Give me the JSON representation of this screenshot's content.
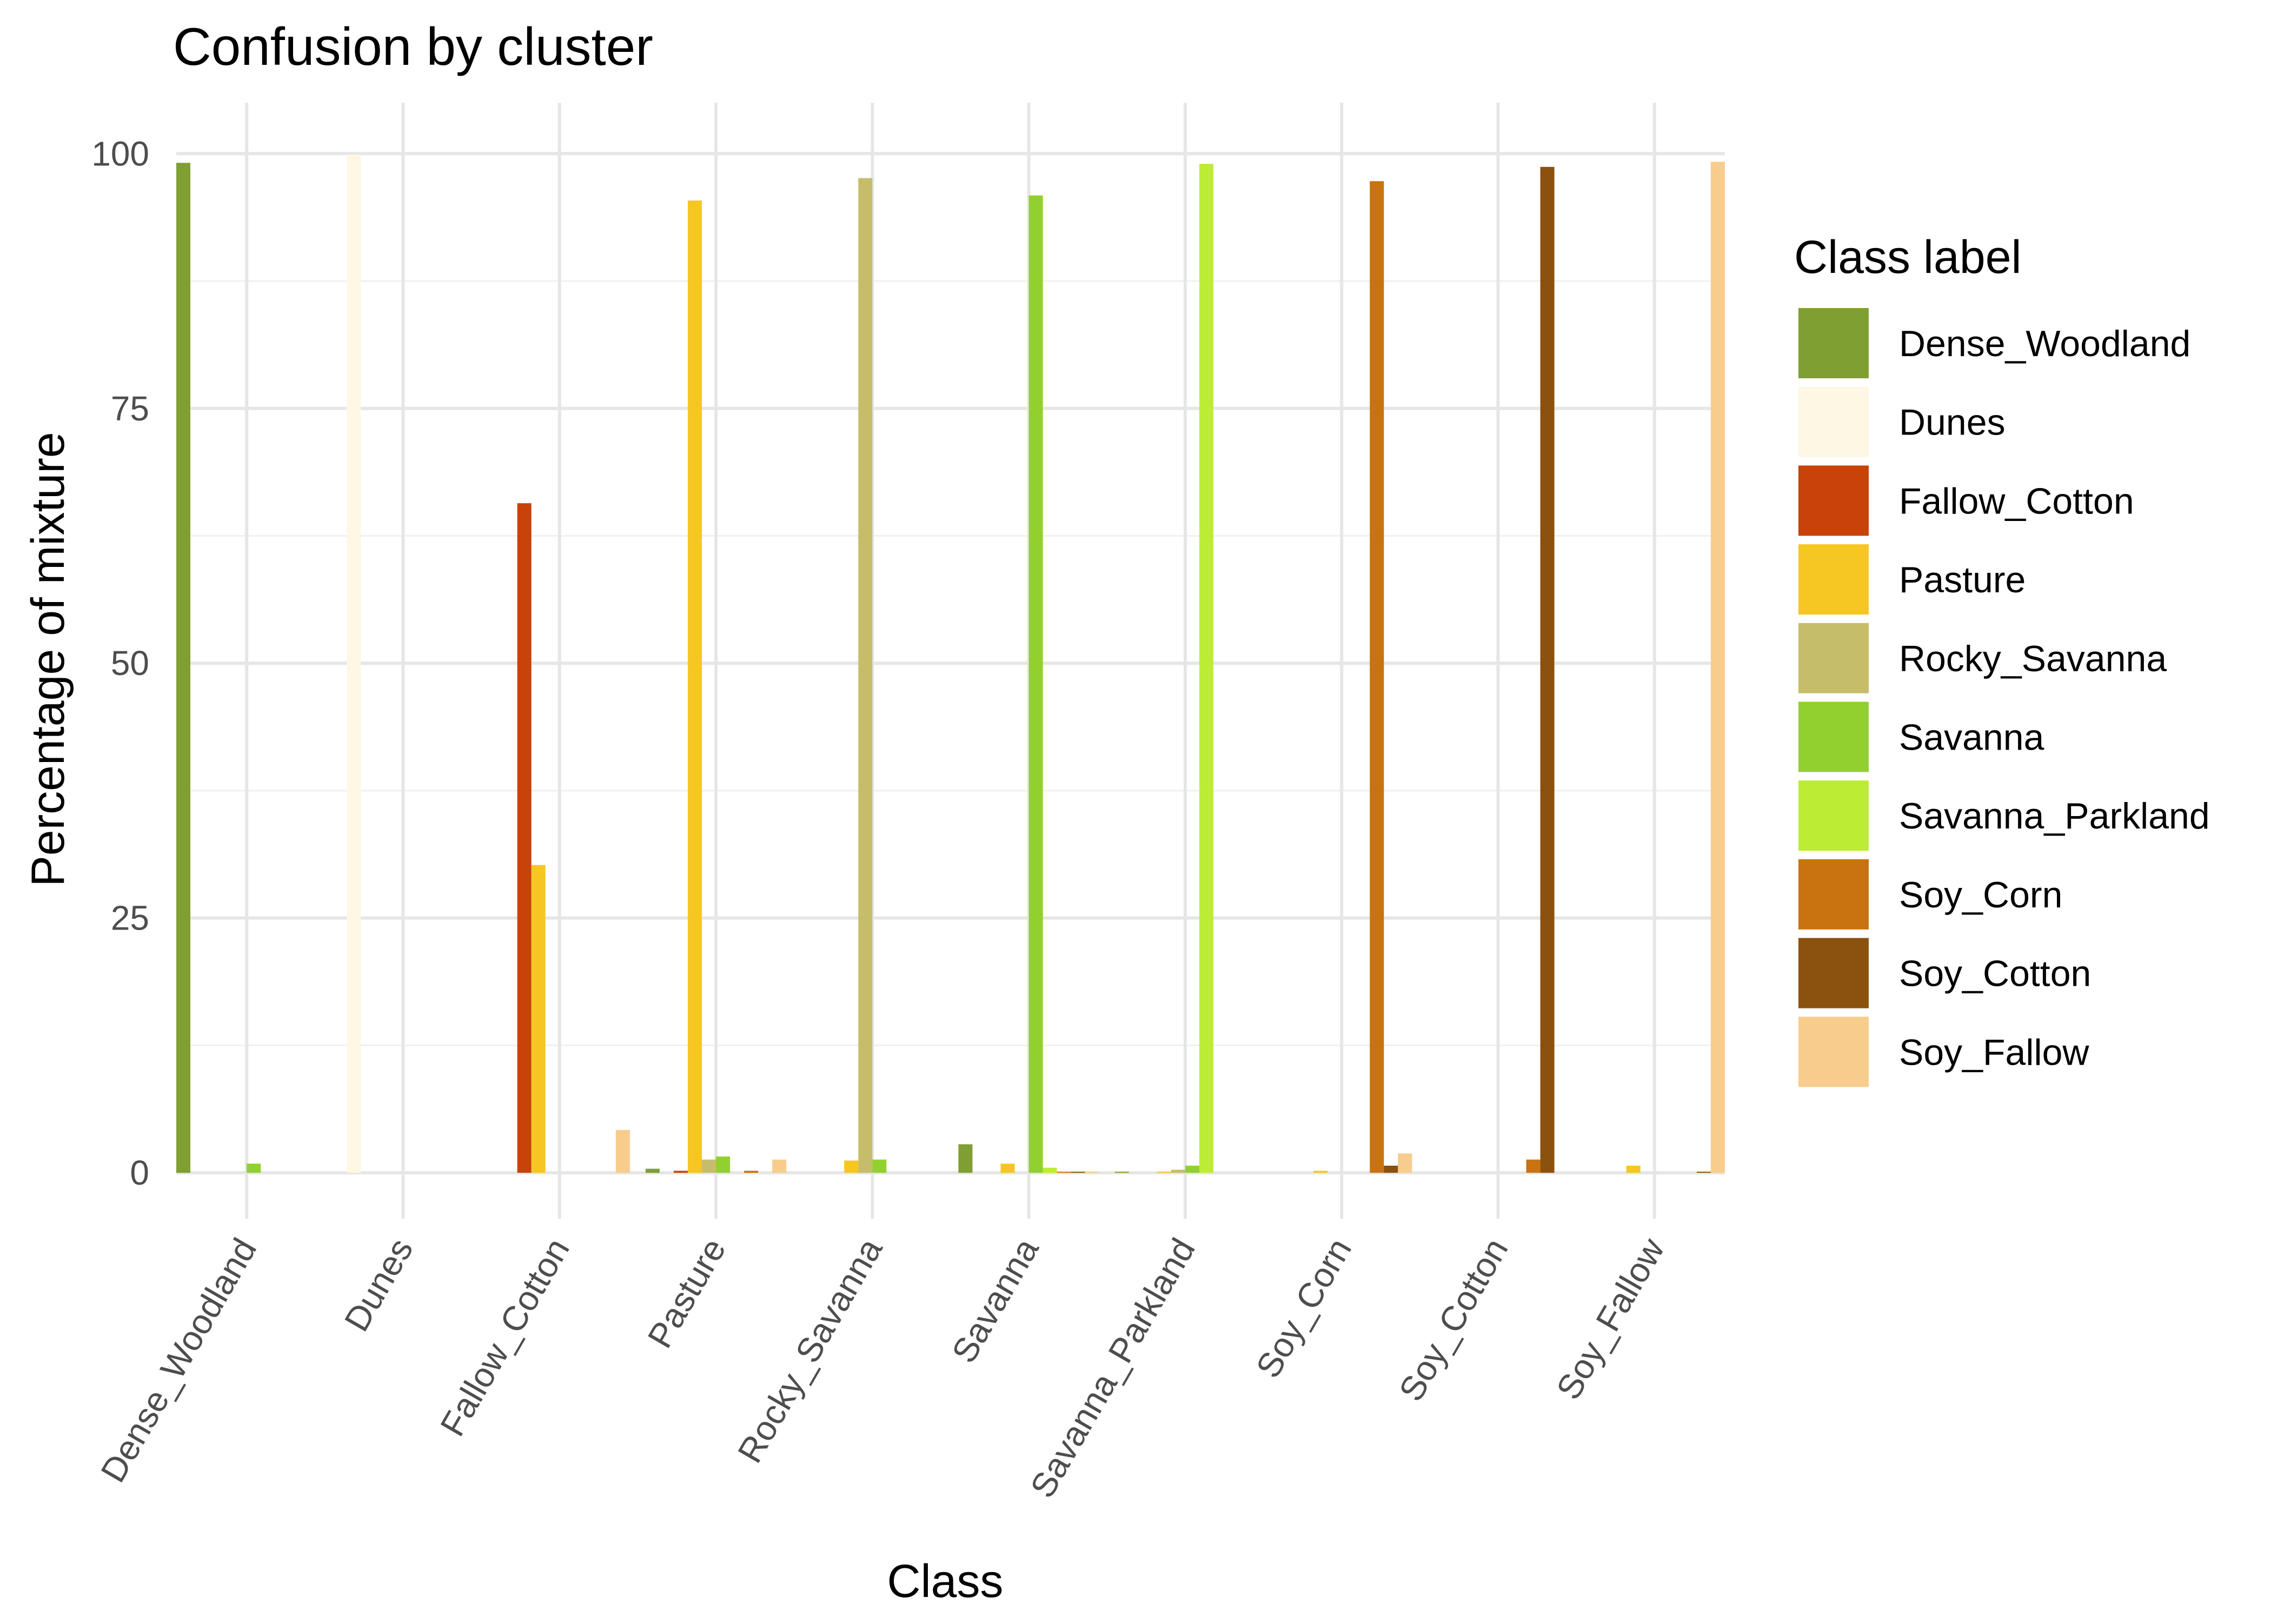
{
  "chart_data": {
    "type": "bar",
    "title": "Confusion by cluster",
    "xlabel": "Class",
    "ylabel": "Percentage of mixture",
    "categories": [
      "Dense_Woodland",
      "Dunes",
      "Fallow_Cotton",
      "Pasture",
      "Rocky_Savanna",
      "Savanna",
      "Savanna_Parkland",
      "Soy_Corn",
      "Soy_Cotton",
      "Soy_Fallow"
    ],
    "ylim": [
      -4.5,
      105
    ],
    "yticks": [
      0,
      25,
      50,
      75,
      100
    ],
    "grid": true,
    "legend": {
      "title": "Class label",
      "position": "right"
    },
    "series": [
      {
        "name": "Dense_Woodland",
        "color": "#7f9f33",
        "values": [
          99.1,
          0,
          0,
          0.4,
          0,
          2.8,
          0.1,
          0,
          0,
          0
        ]
      },
      {
        "name": "Dunes",
        "color": "#fdf7e3",
        "values": [
          0,
          99.9,
          0,
          0,
          0,
          0,
          0,
          0,
          0,
          0
        ]
      },
      {
        "name": "Fallow_Cotton",
        "color": "#c8420a",
        "values": [
          0,
          0,
          65.7,
          0.2,
          0,
          0,
          0,
          0,
          0,
          0
        ]
      },
      {
        "name": "Pasture",
        "color": "#f6c623",
        "values": [
          0,
          0,
          30.2,
          95.4,
          1.2,
          0.9,
          0.1,
          0.2,
          0,
          0.7
        ]
      },
      {
        "name": "Rocky_Savanna",
        "color": "#c6bd6a",
        "values": [
          0,
          0,
          0,
          1.3,
          97.6,
          0,
          0.3,
          0,
          0,
          0
        ]
      },
      {
        "name": "Savanna",
        "color": "#92d030",
        "values": [
          0.9,
          0,
          0,
          1.6,
          1.3,
          95.9,
          0.7,
          0,
          0,
          0
        ]
      },
      {
        "name": "Savanna_Parkland",
        "color": "#bdec35",
        "values": [
          0,
          0,
          0,
          0,
          0,
          0.5,
          99.0,
          0,
          0,
          0
        ]
      },
      {
        "name": "Soy_Corn",
        "color": "#c8730f",
        "values": [
          0,
          0,
          0,
          0.2,
          0,
          0.1,
          0,
          97.3,
          1.3,
          0
        ]
      },
      {
        "name": "Soy_Cotton",
        "color": "#8b510e",
        "values": [
          0,
          0,
          0,
          0,
          0,
          0.1,
          0,
          0.7,
          98.7,
          0.1
        ]
      },
      {
        "name": "Soy_Fallow",
        "color": "#f7cc8d",
        "values": [
          0,
          0,
          4.2,
          1.3,
          0,
          0.1,
          0,
          1.9,
          0,
          99.2
        ]
      }
    ]
  }
}
